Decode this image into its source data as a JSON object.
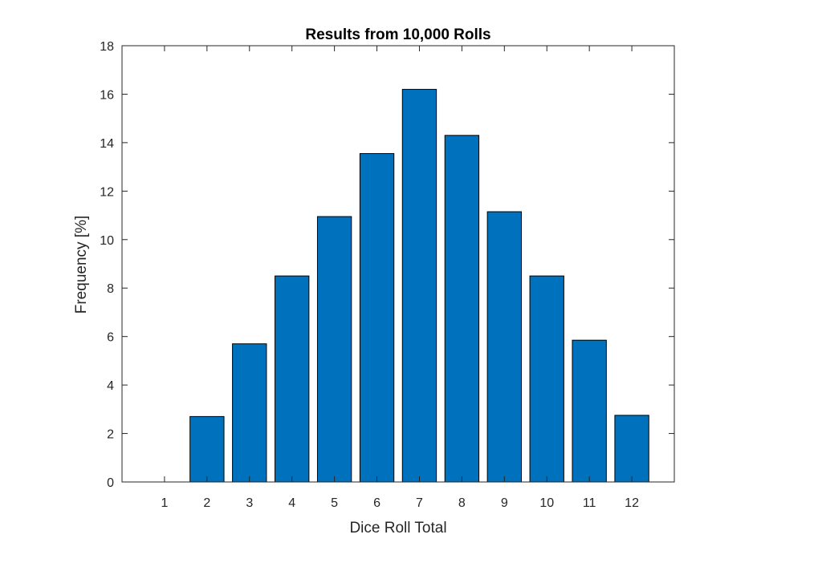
{
  "chart_data": {
    "type": "bar",
    "title": "Results from 10,000 Rolls",
    "xlabel": "Dice Roll Total",
    "ylabel": "Frequency [%]",
    "categories": [
      "1",
      "2",
      "3",
      "4",
      "5",
      "6",
      "7",
      "8",
      "9",
      "10",
      "11",
      "12"
    ],
    "values": [
      0,
      2.7,
      5.7,
      8.5,
      10.95,
      13.55,
      16.2,
      14.3,
      11.15,
      8.5,
      5.85,
      2.75
    ],
    "ylim": [
      0,
      18
    ],
    "yticks": [
      "0",
      "2",
      "4",
      "6",
      "8",
      "10",
      "12",
      "14",
      "16",
      "18"
    ],
    "bar_color": "#0072BD",
    "grid": false
  }
}
